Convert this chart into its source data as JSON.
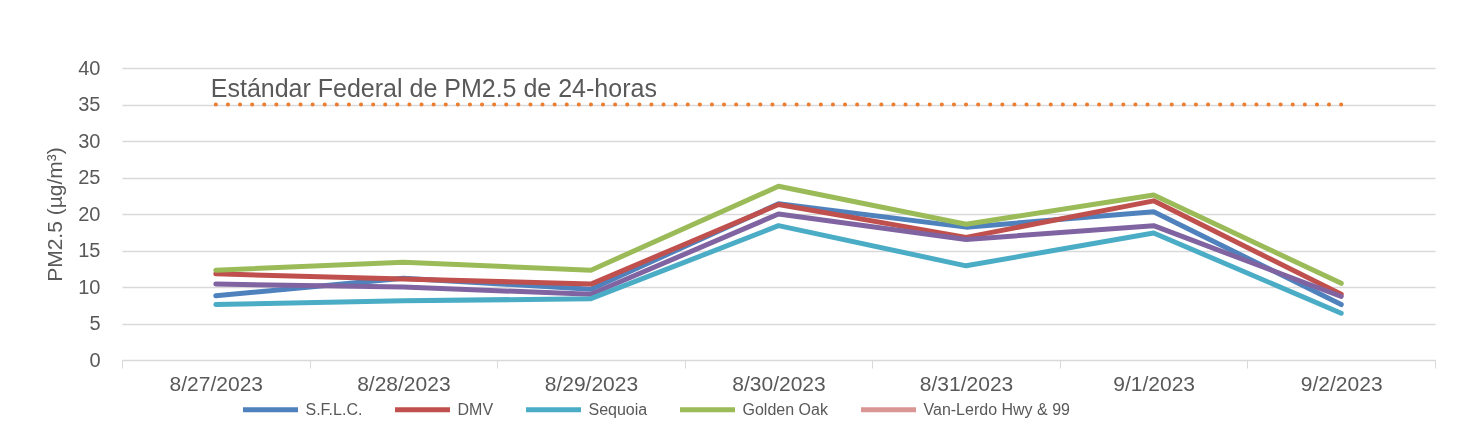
{
  "chart_data": {
    "type": "line",
    "ylabel": "PM2.5 (µg/m³)",
    "categories": [
      "8/27/2023",
      "8/28/2023",
      "8/29/2023",
      "8/30/2023",
      "8/31/2023",
      "9/1/2023",
      "9/2/2023"
    ],
    "series": [
      {
        "name": "S.F.L.C.",
        "color": "#4f81bd",
        "values": [
          8.8,
          11.2,
          9.7,
          21.4,
          18.2,
          20.3,
          7.6
        ]
      },
      {
        "name": "DMV",
        "color": "#c0504d",
        "values": [
          11.8,
          11.1,
          10.4,
          21.3,
          16.8,
          21.8,
          9.0
        ]
      },
      {
        "color": "#8064a2",
        "values": [
          10.4,
          10.0,
          9.0,
          20.0,
          16.5,
          18.4,
          8.7
        ]
      },
      {
        "name": "Sequoia",
        "color": "#4bacc6",
        "values": [
          7.6,
          8.1,
          8.4,
          18.4,
          12.9,
          17.4,
          6.4
        ]
      },
      {
        "name": "Golden Oak",
        "color": "#9bbb59",
        "values": [
          12.3,
          13.4,
          12.3,
          23.8,
          18.6,
          22.6,
          10.5
        ]
      },
      {
        "name": "Van-Lerdo Hwy & 99",
        "color": "#d99694",
        "values": [
          null,
          null,
          null,
          null,
          null,
          null,
          null
        ]
      }
    ],
    "ylim": [
      0,
      40
    ],
    "yticks": [
      0,
      5,
      10,
      15,
      20,
      25,
      30,
      35,
      40
    ],
    "grid": "y",
    "legend": "bottom",
    "line_style": "solid",
    "ref_lines": [
      {
        "axis": "y",
        "value": 35,
        "label": "Estándar Federal de PM2.5 de 24-horas",
        "color": "#ed7d31",
        "line_style": "dotted"
      }
    ]
  }
}
